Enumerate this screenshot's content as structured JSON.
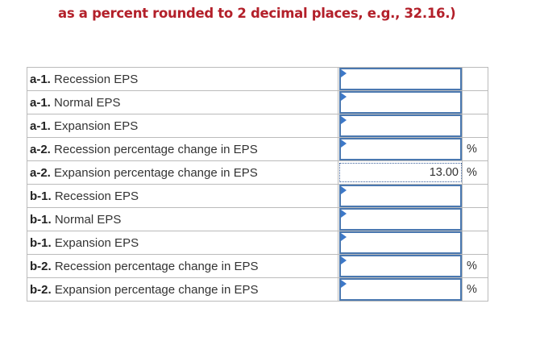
{
  "header": {
    "instruction": "as a percent rounded to 2 decimal places, e.g., 32.16.)"
  },
  "table": {
    "rows": [
      {
        "part": "a-1.",
        "label": "Recession EPS"
      },
      {
        "part": "a-1.",
        "label": "Normal EPS"
      },
      {
        "part": "a-1.",
        "label": "Expansion EPS"
      },
      {
        "part": "a-2.",
        "label": "Recession percentage change in EPS",
        "unit": "%"
      },
      {
        "part": "a-2.",
        "label": "Expansion percentage change in EPS",
        "value": "13.00",
        "unit": "%"
      },
      {
        "part": "b-1.",
        "label": "Recession EPS"
      },
      {
        "part": "b-1.",
        "label": "Normal EPS"
      },
      {
        "part": "b-1.",
        "label": "Expansion EPS"
      },
      {
        "part": "b-2.",
        "label": "Recession percentage change in EPS",
        "unit": "%"
      },
      {
        "part": "b-2.",
        "label": "Expansion percentage change in EPS",
        "unit": "%"
      }
    ]
  }
}
